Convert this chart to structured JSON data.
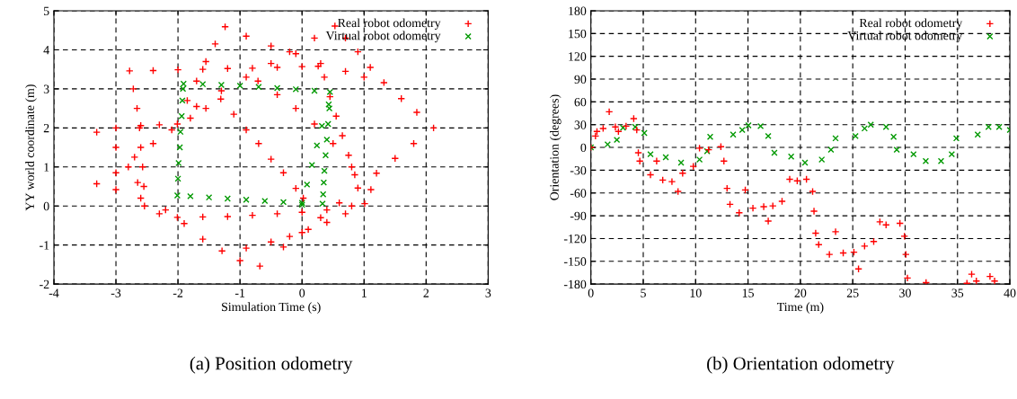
{
  "chart_data": [
    {
      "type": "scatter",
      "xlabel": "Simulation Time (s)",
      "ylabel": "YY world coordinate (m)",
      "annotations": [
        "(a) Position odometry"
      ],
      "xlim": [
        -4,
        3
      ],
      "ylim": [
        -2,
        5
      ],
      "xticks": [
        -4,
        -3,
        -2,
        -1,
        0,
        1,
        2,
        3
      ],
      "yticks": [
        -2,
        -1,
        0,
        1,
        2,
        3,
        4,
        5
      ],
      "grid": true,
      "legend": "top right",
      "series": [
        {
          "name": "Real robot odometry",
          "color": "#ff0000",
          "marker": "plus",
          "x": [
            -2.78,
            -2.4,
            -2.0,
            -1.6,
            -1.2,
            -0.8,
            -0.4,
            0.0,
            0.26,
            0.36,
            0.45,
            0.55,
            0.65,
            0.75,
            0.85,
            1.01,
            -2.72,
            -2.66,
            -2.62,
            -2.6,
            -2.57,
            -2.55,
            -2.54,
            -2.3,
            -2.01,
            -1.6,
            -1.2,
            -0.8,
            -0.4,
            0.0,
            0.4,
            0.8,
            0.53,
            0.7,
            0.9,
            1.1,
            1.32,
            1.6,
            1.85,
            2.12,
            1.8,
            1.5,
            1.2,
            0.9,
            0.6,
            0.3,
            0.0,
            -0.3,
            -0.68,
            -3.31,
            -3.0,
            -2.6,
            -2.2,
            -1.9,
            -1.6,
            -1.29,
            -1.0,
            -3.0,
            -2.7,
            -2.4,
            -2.1,
            -1.8,
            -1.55,
            -1.31,
            -1.1,
            -0.9,
            -0.7,
            -0.5,
            -0.3,
            -0.1,
            0.02,
            -1.24,
            -1.4,
            -1.55,
            -1.7,
            -1.85,
            -2.01,
            -0.9,
            -0.5,
            -0.1,
            0.3,
            0.7,
            1.0,
            -3.31,
            -3.0,
            -2.6,
            -2.3,
            -3.0,
            -2.8,
            -2.65,
            0.7,
            0.4,
            0.1,
            -0.2,
            -0.5,
            -0.9,
            0.2,
            -0.2,
            -0.5,
            -0.9,
            -1.3,
            -1.7,
            -0.71,
            -0.4,
            -0.1,
            0.2,
            0.5,
            0.8,
            1.11
          ],
          "values": [
            3.46,
            3.47,
            3.49,
            3.5,
            3.52,
            3.53,
            3.55,
            3.57,
            3.58,
            3.3,
            2.8,
            2.3,
            1.8,
            1.3,
            0.8,
            0.06,
            3.0,
            2.5,
            2.0,
            1.5,
            1.0,
            0.5,
            0.0,
            -0.2,
            -0.29,
            -0.28,
            -0.27,
            -0.24,
            -0.2,
            -0.16,
            -0.1,
            0.0,
            4.61,
            4.3,
            3.95,
            3.55,
            3.16,
            2.75,
            2.4,
            2.0,
            1.6,
            1.22,
            0.84,
            0.46,
            0.08,
            -0.3,
            -0.68,
            -1.05,
            -1.54,
            0.57,
            0.42,
            0.2,
            -0.1,
            -0.45,
            -0.85,
            -1.15,
            -1.4,
            0.85,
            1.25,
            1.6,
            1.95,
            2.25,
            2.5,
            2.74,
            2.35,
            1.95,
            1.6,
            1.2,
            0.85,
            0.45,
            0.2,
            4.59,
            4.15,
            3.7,
            3.2,
            2.7,
            2.1,
            4.35,
            4.1,
            3.9,
            3.65,
            3.45,
            3.3,
            1.89,
            2.0,
            2.06,
            2.08,
            1.5,
            1.0,
            0.6,
            -0.2,
            -0.42,
            -0.6,
            -0.78,
            -0.92,
            -1.08,
            4.3,
            3.95,
            3.65,
            3.3,
            2.95,
            2.55,
            3.2,
            2.85,
            2.5,
            2.1,
            1.6,
            1.0,
            0.42
          ]
        },
        {
          "name": "Virtual robot odometry",
          "color": "#009900",
          "marker": "cross",
          "x": [
            -1.91,
            -1.6,
            -1.3,
            -1.0,
            -0.7,
            -0.4,
            -0.1,
            0.2,
            0.45,
            0.44,
            0.42,
            0.4,
            0.38,
            0.36,
            0.35,
            0.34,
            0.33,
            0.0,
            -0.3,
            -0.6,
            -0.9,
            -1.2,
            -1.5,
            -1.8,
            -2.01,
            -2.0,
            -1.99,
            -1.97,
            -1.96,
            -1.94,
            -1.93,
            -1.92,
            0.0,
            0.08,
            0.16,
            0.24,
            0.32,
            0.43
          ],
          "values": [
            3.13,
            3.12,
            3.1,
            3.08,
            3.05,
            3.02,
            2.99,
            2.95,
            2.92,
            2.5,
            2.1,
            1.7,
            1.3,
            0.9,
            0.6,
            0.3,
            0.06,
            0.08,
            0.1,
            0.13,
            0.16,
            0.19,
            0.22,
            0.25,
            0.27,
            0.7,
            1.1,
            1.5,
            1.9,
            2.3,
            2.7,
            3.0,
            0.03,
            0.55,
            1.05,
            1.55,
            2.05,
            2.6
          ]
        }
      ]
    },
    {
      "type": "scatter",
      "xlabel": "Time (m)",
      "ylabel": "Orientation (degrees)",
      "annotations": [
        "(b) Orientation odometry"
      ],
      "xlim": [
        0,
        40
      ],
      "ylim": [
        -180,
        180
      ],
      "xticks": [
        0,
        5,
        10,
        15,
        20,
        25,
        30,
        35,
        40
      ],
      "yticks": [
        -180,
        -150,
        -120,
        -90,
        -60,
        -30,
        0,
        30,
        60,
        90,
        120,
        150,
        180
      ],
      "grid": true,
      "legend": "top right",
      "series": [
        {
          "name": "Real robot odometry",
          "color": "#ff0000",
          "marker": "plus",
          "x": [
            0,
            0.44,
            0.58,
            1.17,
            1.75,
            2.34,
            2.63,
            3.36,
            4.09,
            4.38,
            4.53,
            4.67,
            5.69,
            6.28,
            6.86,
            7.74,
            8.32,
            8.76,
            9.78,
            10.37,
            11.24,
            12.41,
            12.7,
            13.0,
            13.28,
            14.16,
            14.74,
            15.47,
            16.5,
            16.93,
            17.37,
            18.25,
            18.98,
            19.7,
            20.58,
            21.17,
            21.3,
            21.46,
            21.75,
            22.77,
            23.36,
            24.09,
            25.11,
            25.55,
            26.13,
            27.0,
            27.59,
            28.18,
            29.5,
            29.93,
            30.07,
            30.22,
            32.0,
            35.9,
            36.35,
            36.8,
            38.1,
            38.54
          ],
          "values": [
            0,
            15,
            21,
            25,
            47,
            27,
            21,
            28,
            38,
            23,
            -7,
            -18,
            -36,
            -18,
            -43,
            -45,
            -58,
            -34,
            -25,
            -1,
            -3,
            1,
            -18,
            -54,
            -75,
            -86,
            -56,
            -80,
            -78,
            -97,
            -77,
            -71,
            -42,
            -44,
            -42,
            -58,
            -84,
            -113,
            -128,
            -141,
            -111,
            -139,
            -138,
            -160,
            -130,
            -124,
            -98,
            -102,
            -100,
            -117,
            -141,
            -172,
            -178,
            -179,
            -167,
            -176,
            -170,
            -176
          ]
        },
        {
          "name": "Virtual robot odometry",
          "color": "#009900",
          "marker": "cross",
          "x": [
            0,
            1.6,
            2.48,
            3.07,
            4.23,
            5.1,
            5.69,
            7.15,
            8.61,
            10.37,
            11.1,
            11.39,
            13.58,
            14.45,
            15.04,
            16.2,
            16.93,
            17.52,
            19.12,
            20.44,
            22.04,
            22.92,
            23.36,
            25.26,
            26.13,
            26.72,
            28.18,
            28.9,
            29.2,
            30.8,
            31.97,
            33.43,
            34.45,
            34.89,
            36.93,
            37.96,
            38.98,
            40
          ],
          "values": [
            0,
            4,
            10,
            26,
            27,
            19,
            -9,
            -13,
            -20,
            -16,
            -5,
            14,
            17,
            23,
            29,
            28,
            15,
            -7,
            -12,
            -20,
            -16,
            -3,
            12,
            15,
            25,
            30,
            27,
            14,
            -3,
            -9,
            -18,
            -18,
            -9,
            12,
            17,
            27,
            27,
            23
          ]
        }
      ]
    }
  ]
}
